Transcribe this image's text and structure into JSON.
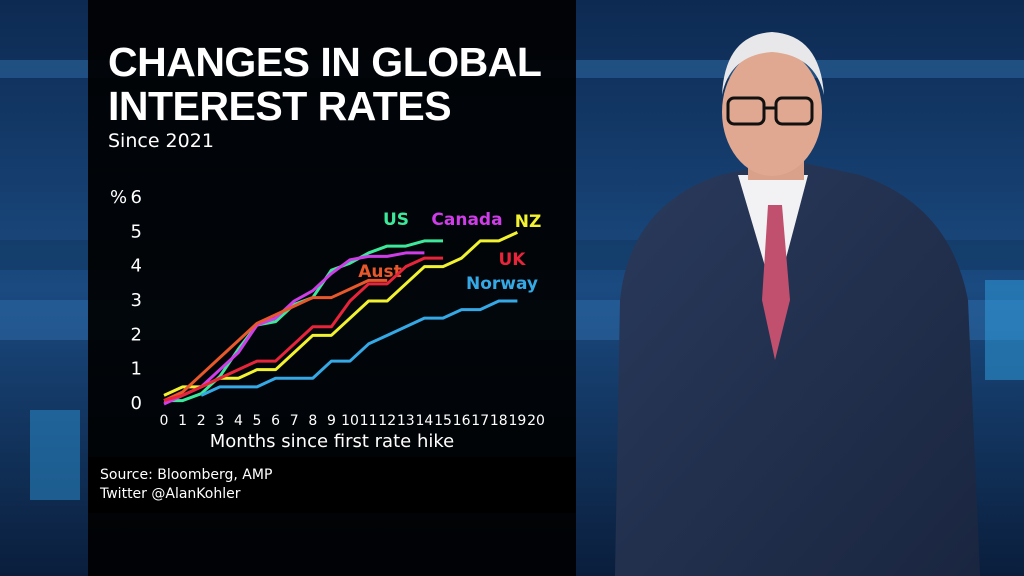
{
  "chart_data": {
    "type": "line",
    "title": "CHANGES IN GLOBAL INTEREST RATES",
    "subtitle": "Since 2021",
    "ylabel": "%",
    "xlabel": "Months since first rate hike",
    "source": [
      "Source: Bloomberg, AMP",
      "Twitter @AlanKohler"
    ],
    "x": [
      0,
      1,
      2,
      3,
      4,
      5,
      6,
      7,
      8,
      9,
      10,
      11,
      12,
      13,
      14,
      15,
      16,
      17,
      18,
      19,
      20
    ],
    "xlim": [
      0,
      20
    ],
    "xticks": [
      0,
      1,
      2,
      3,
      4,
      5,
      6,
      7,
      8,
      9,
      10,
      11,
      12,
      13,
      14,
      15,
      16,
      17,
      18,
      19,
      20
    ],
    "ylim": [
      0,
      6
    ],
    "yticks": [
      0,
      1,
      2,
      3,
      4,
      5,
      6
    ],
    "series": [
      {
        "name": "US",
        "color": "#3ee89a",
        "values": [
          0.1,
          0.1,
          0.3,
          0.8,
          1.6,
          2.3,
          2.4,
          2.9,
          3.1,
          3.9,
          4.1,
          4.4,
          4.6,
          4.6,
          4.75,
          4.75,
          null,
          null,
          null,
          null,
          null
        ]
      },
      {
        "name": "Canada",
        "color": "#cf3de8",
        "values": [
          0,
          0.25,
          0.5,
          1.0,
          1.5,
          2.3,
          2.5,
          3.0,
          3.3,
          3.8,
          4.2,
          4.3,
          4.3,
          4.4,
          4.4,
          null,
          null,
          null,
          null,
          null,
          null
        ]
      },
      {
        "name": "NZ",
        "color": "#f2f230",
        "values": [
          0.25,
          0.5,
          0.5,
          0.75,
          0.75,
          1.0,
          1.0,
          1.5,
          2.0,
          2.0,
          2.5,
          3.0,
          3.0,
          3.5,
          4.0,
          4.0,
          4.25,
          4.75,
          4.75,
          5.0,
          null
        ]
      },
      {
        "name": "Aust",
        "color": "#e8582a",
        "values": [
          0.1,
          0.35,
          0.85,
          1.35,
          1.85,
          2.35,
          2.6,
          2.85,
          3.1,
          3.1,
          3.35,
          3.6,
          3.6,
          null,
          null,
          null,
          null,
          null,
          null,
          null,
          null
        ]
      },
      {
        "name": "UK",
        "color": "#e8243a",
        "values": [
          0.1,
          0.25,
          0.5,
          0.75,
          1.0,
          1.25,
          1.25,
          1.75,
          2.25,
          2.25,
          3.0,
          3.5,
          3.5,
          4.0,
          4.25,
          4.25,
          null,
          null,
          null,
          null,
          null
        ]
      },
      {
        "name": "Norway",
        "color": "#35a8e6",
        "values": [
          null,
          null,
          0.25,
          0.5,
          0.5,
          0.5,
          0.75,
          0.75,
          0.75,
          1.25,
          1.25,
          1.75,
          2.0,
          2.25,
          2.5,
          2.5,
          2.75,
          2.75,
          3.0,
          3.0,
          null
        ]
      }
    ]
  }
}
